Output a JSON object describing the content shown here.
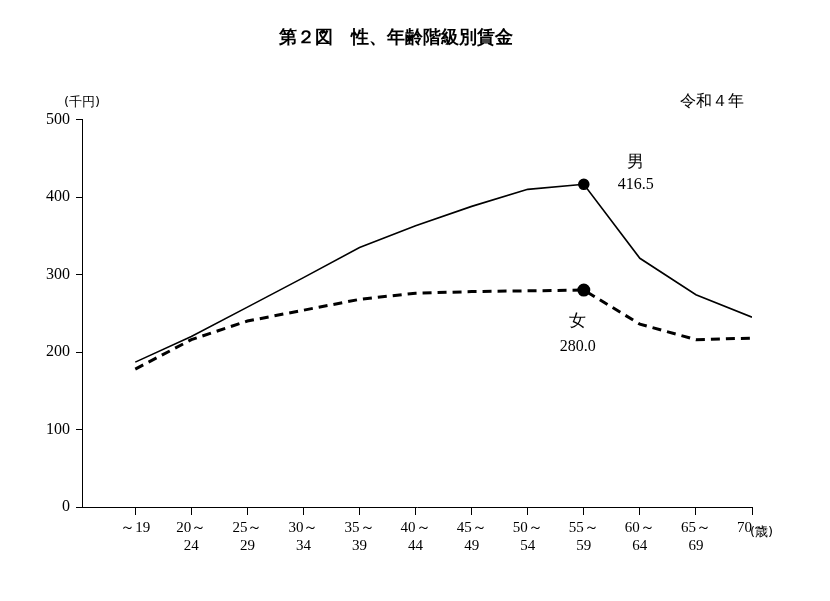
{
  "chart_data": {
    "type": "line",
    "title": "第２図　性、年齢階級別賃金",
    "subtitle": "令和４年",
    "y_label": "(千円)",
    "x_label": "(歳)",
    "categories": [
      "～19",
      "20～24",
      "25～29",
      "30～34",
      "35～39",
      "40～44",
      "45～49",
      "50～54",
      "55～59",
      "60～64",
      "65～69",
      "70～"
    ],
    "series": [
      {
        "name": "男",
        "color": "#000000",
        "line_style": "solid",
        "values": [
          187,
          220,
          258,
          296,
          335,
          363,
          388,
          410,
          416.5,
          321,
          274,
          245
        ],
        "value_labels": [
          null,
          null,
          null,
          null,
          null,
          null,
          null,
          null,
          "416.5",
          null,
          null,
          null
        ]
      },
      {
        "name": "女",
        "color": "#000000",
        "line_style": "dashed",
        "values": [
          178,
          216,
          240,
          254,
          268,
          276,
          278,
          279,
          280.0,
          236,
          216,
          218
        ],
        "value_labels": [
          null,
          null,
          null,
          null,
          null,
          null,
          null,
          null,
          "280.0",
          null,
          null,
          null
        ]
      }
    ],
    "ylim": [
      0,
      500
    ],
    "yticks": [
      0,
      100,
      200,
      300,
      400,
      500
    ],
    "grid": false,
    "data_labels": true
  }
}
